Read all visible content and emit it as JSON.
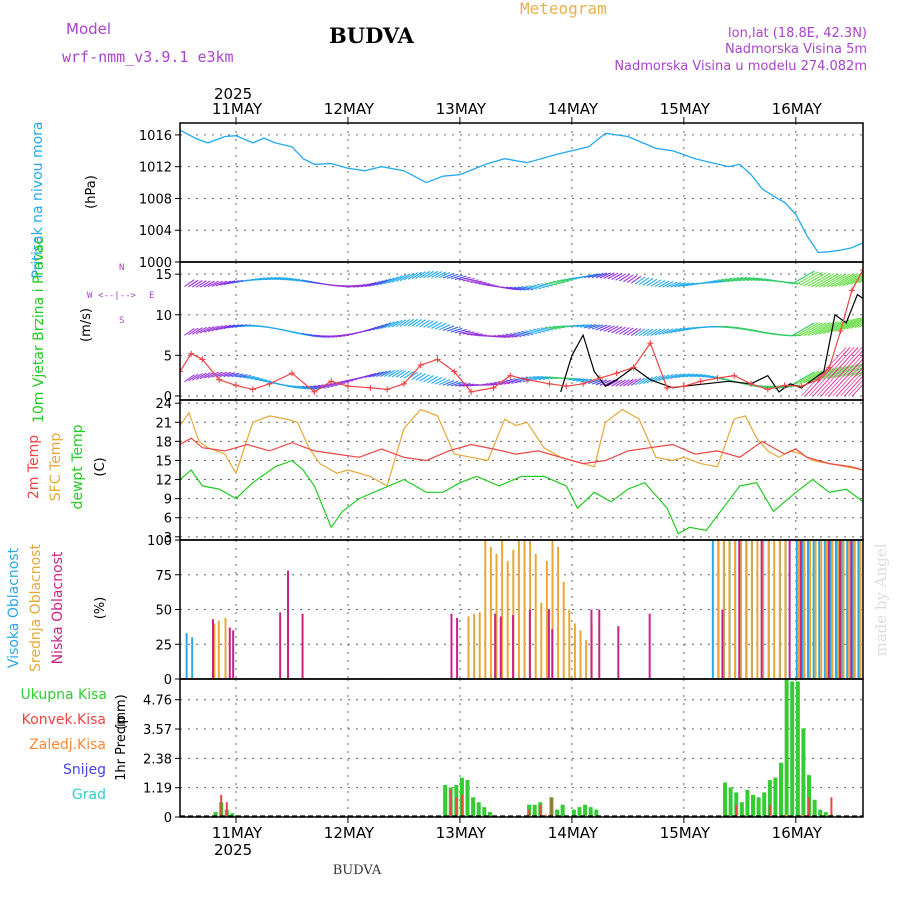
{
  "header": {
    "model_label": "Model",
    "model_name": "wrf-nmm_v3.9.1  e3km",
    "title": "Meteogram",
    "location": "BUDVA",
    "lonlat": "lon,lat (18.8E, 42.3N)",
    "elevation": "Nadmorska Visina 5m",
    "model_elevation": "Nadmorska Visina u modelu 274.082m"
  },
  "footer": {
    "location": "BUDVA",
    "credit": "made by Angel"
  },
  "time_axis": {
    "year": "2025",
    "days": [
      "11MAY",
      "12MAY",
      "13MAY",
      "14MAY",
      "15MAY",
      "16MAY"
    ],
    "start_day_offset": -0.5,
    "end_day_offset": 5.6
  },
  "colors": {
    "pressure": "#22aaee",
    "temp2m": "#ee4444",
    "sfc": "#e8a838",
    "dewpt": "#22cc22",
    "high_cloud": "#2aa8e8",
    "mid_cloud": "#e8a838",
    "low_cloud": "#cc2288",
    "total_precip": "#33cc33",
    "conv_precip": "#ee4444",
    "strat_precip": "#ff8833",
    "snow": "#4444ee",
    "graupel": "#33cccc",
    "grid": "#666666",
    "label_magenta": "#aa44cc"
  },
  "chart_data": [
    {
      "type": "line",
      "name": "pressure",
      "ylabel": "Pritisak na nivou mora",
      "unit": "(hPa)",
      "ylim": [
        1000,
        1017.5
      ],
      "yticks": [
        1000,
        1004,
        1008,
        1012,
        1016
      ],
      "x": [
        -0.5,
        -0.35,
        -0.25,
        -0.1,
        0.0,
        0.15,
        0.25,
        0.35,
        0.5,
        0.6,
        0.7,
        0.85,
        1.0,
        1.15,
        1.3,
        1.5,
        1.7,
        1.85,
        2.0,
        2.25,
        2.4,
        2.6,
        2.85,
        3.0,
        3.15,
        3.3,
        3.5,
        3.75,
        3.9,
        4.1,
        4.25,
        4.4,
        4.5,
        4.6,
        4.7,
        4.8,
        4.9,
        5.0,
        5.1,
        5.2,
        5.3,
        5.4,
        5.5,
        5.6
      ],
      "values": [
        1016.6,
        1015.5,
        1015.0,
        1015.8,
        1015.9,
        1015.0,
        1015.6,
        1015.0,
        1014.5,
        1013.0,
        1012.3,
        1012.4,
        1011.8,
        1011.5,
        1012.0,
        1011.5,
        1010.0,
        1010.8,
        1011.0,
        1012.4,
        1013.0,
        1012.5,
        1013.5,
        1014.0,
        1014.5,
        1016.2,
        1015.8,
        1014.3,
        1014.0,
        1013.0,
        1012.5,
        1012.0,
        1012.3,
        1011.0,
        1009.2,
        1008.3,
        1007.5,
        1006.0,
        1003.3,
        1001.2,
        1001.3,
        1001.5,
        1001.8,
        1002.4
      ]
    },
    {
      "type": "line",
      "name": "wind",
      "ylabel": "10m Vjetar Brzina i Pravac",
      "unit": "(m/s)",
      "ylim": [
        -0.5,
        16.5
      ],
      "yticks": [
        0,
        5,
        10,
        15
      ],
      "compass": [
        "W",
        "<--|-->",
        "E",
        "N",
        "S"
      ],
      "series": [
        {
          "name": "speed",
          "x": [
            -0.5,
            -0.4,
            -0.3,
            -0.15,
            0.0,
            0.15,
            0.3,
            0.5,
            0.7,
            0.85,
            1.0,
            1.2,
            1.35,
            1.5,
            1.65,
            1.8,
            1.95,
            2.1,
            2.3,
            2.45,
            2.6,
            2.8,
            2.95,
            3.1,
            3.25,
            3.4,
            3.55,
            3.7,
            3.85,
            4.0,
            4.15,
            4.3,
            4.45,
            4.6,
            4.75,
            4.9,
            5.05,
            5.2,
            5.3,
            5.4,
            5.5,
            5.6
          ],
          "values": [
            3.0,
            5.2,
            4.5,
            2.0,
            1.3,
            0.8,
            1.5,
            2.8,
            0.5,
            1.8,
            1.2,
            1.0,
            0.8,
            1.5,
            3.8,
            4.5,
            3.0,
            0.5,
            1.0,
            2.5,
            2.0,
            1.5,
            1.2,
            1.5,
            2.2,
            2.8,
            3.5,
            6.5,
            1.0,
            1.2,
            1.8,
            2.2,
            2.5,
            1.5,
            0.8,
            1.3,
            1.2,
            2.0,
            3.5,
            8.0,
            13.0,
            15.5
          ]
        },
        {
          "name": "gust",
          "x": [
            2.9,
            3.0,
            3.1,
            3.2,
            3.3,
            3.4,
            3.55,
            3.7,
            3.8,
            3.9,
            4.0,
            4.4,
            4.6,
            4.75,
            4.85,
            4.95,
            5.05,
            5.15,
            5.25,
            5.35,
            5.45,
            5.55,
            5.6
          ],
          "values": [
            0.5,
            5.0,
            7.5,
            3.0,
            1.2,
            2.0,
            3.5,
            2.0,
            1.5,
            1.0,
            1.2,
            1.8,
            1.5,
            2.5,
            0.5,
            1.5,
            1.0,
            2.0,
            3.0,
            10.0,
            9.0,
            12.5,
            12.0
          ]
        }
      ]
    },
    {
      "type": "line",
      "name": "temperature",
      "ylabels": [
        "2m Temp",
        "SFC Temp",
        "dewpt Temp"
      ],
      "unit": "(C)",
      "ylim": [
        2.5,
        24.5
      ],
      "yticks": [
        3,
        6,
        9,
        12,
        15,
        18,
        21,
        24
      ],
      "series": [
        {
          "name": "2m Temp",
          "x": [
            -0.5,
            -0.4,
            -0.3,
            -0.1,
            0.1,
            0.3,
            0.5,
            0.7,
            0.9,
            1.1,
            1.3,
            1.5,
            1.7,
            1.9,
            2.1,
            2.3,
            2.5,
            2.7,
            2.9,
            3.1,
            3.3,
            3.5,
            3.7,
            3.9,
            4.1,
            4.3,
            4.5,
            4.7,
            4.9,
            5.0,
            5.1,
            5.3,
            5.5,
            5.6
          ],
          "values": [
            17.5,
            18.5,
            17.0,
            16.5,
            17.5,
            16.5,
            17.8,
            16.5,
            16.0,
            15.5,
            16.8,
            15.5,
            15.0,
            16.5,
            17.5,
            16.8,
            16.0,
            16.5,
            15.5,
            14.5,
            15.0,
            16.5,
            17.0,
            17.5,
            16.0,
            16.5,
            15.5,
            18.0,
            16.0,
            16.8,
            15.5,
            14.5,
            14.0,
            13.5
          ]
        },
        {
          "name": "SFC Temp",
          "x": [
            -0.5,
            -0.42,
            -0.33,
            -0.25,
            -0.1,
            0.0,
            0.15,
            0.3,
            0.45,
            0.55,
            0.65,
            0.75,
            0.9,
            1.0,
            1.2,
            1.35,
            1.5,
            1.65,
            1.8,
            1.95,
            2.1,
            2.25,
            2.4,
            2.5,
            2.6,
            2.75,
            2.9,
            3.0,
            3.1,
            3.2,
            3.3,
            3.45,
            3.6,
            3.75,
            3.9,
            4.0,
            4.15,
            4.3,
            4.45,
            4.55,
            4.65,
            4.75,
            4.85,
            4.95,
            5.05,
            5.15,
            5.3,
            5.45,
            5.6
          ],
          "values": [
            20.5,
            22.5,
            18.0,
            17.0,
            16.0,
            13.0,
            21.0,
            22.0,
            21.5,
            21.0,
            17.0,
            14.5,
            13.0,
            13.5,
            12.5,
            11.0,
            20.0,
            23.0,
            22.0,
            16.0,
            15.5,
            15.0,
            21.5,
            20.5,
            21.0,
            17.0,
            15.5,
            15.0,
            14.5,
            14.0,
            21.0,
            23.0,
            21.5,
            15.5,
            15.0,
            15.5,
            14.5,
            14.0,
            21.5,
            22.0,
            18.5,
            16.5,
            15.5,
            16.5,
            16.0,
            15.0,
            14.5,
            14.0,
            13.5
          ]
        },
        {
          "name": "dewpt Temp",
          "x": [
            -0.5,
            -0.4,
            -0.3,
            -0.15,
            0.0,
            0.15,
            0.35,
            0.5,
            0.6,
            0.7,
            0.85,
            0.95,
            1.1,
            1.3,
            1.5,
            1.7,
            1.85,
            2.0,
            2.15,
            2.35,
            2.55,
            2.75,
            2.95,
            3.05,
            3.2,
            3.35,
            3.5,
            3.65,
            3.85,
            3.95,
            4.05,
            4.2,
            4.35,
            4.5,
            4.65,
            4.8,
            5.0,
            5.15,
            5.3,
            5.45,
            5.6
          ],
          "values": [
            12.0,
            13.5,
            11.0,
            10.5,
            9.0,
            11.5,
            14.0,
            15.0,
            13.5,
            11.0,
            4.5,
            7.0,
            9.0,
            10.5,
            12.0,
            10.0,
            10.0,
            11.5,
            12.5,
            11.0,
            12.5,
            12.5,
            11.0,
            7.5,
            10.0,
            8.5,
            10.5,
            11.5,
            7.5,
            3.5,
            4.5,
            4.0,
            7.5,
            11.0,
            11.5,
            7.0,
            10.0,
            12.0,
            10.0,
            10.5,
            8.5
          ]
        }
      ]
    },
    {
      "type": "bar",
      "name": "cloud",
      "ylabels": [
        "Visoka Oblacnost",
        "Srednja Oblacnost",
        "Niska Oblacnost"
      ],
      "unit": "(%)",
      "ylim": [
        0,
        100
      ],
      "yticks": [
        0,
        25,
        50,
        75,
        100
      ],
      "series": [
        {
          "name": "Visoka Oblacnost",
          "x": [
            -0.45,
            -0.4,
            4.25,
            4.3,
            4.35,
            4.4,
            4.45,
            4.5,
            4.55,
            4.6,
            4.7,
            4.75,
            4.85,
            4.9,
            5.0,
            5.05,
            5.1,
            5.15,
            5.2,
            5.25,
            5.3,
            5.35,
            5.4,
            5.45,
            5.5,
            5.55
          ],
          "values": [
            33,
            30,
            100,
            100,
            100,
            100,
            100,
            100,
            100,
            100,
            100,
            100,
            100,
            100,
            100,
            100,
            100,
            100,
            100,
            100,
            100,
            100,
            100,
            100,
            100,
            100
          ]
        },
        {
          "name": "Srednja Oblacnost",
          "x": [
            -0.22,
            -0.18,
            -0.12,
            2.05,
            2.1,
            2.15,
            2.2,
            2.25,
            2.3,
            2.35,
            2.4,
            2.45,
            2.5,
            2.55,
            2.6,
            2.65,
            2.7,
            2.75,
            2.8,
            2.85,
            2.9,
            2.95,
            3.0,
            3.05,
            3.1,
            3.15,
            4.28,
            4.33,
            4.38,
            4.43,
            4.48,
            4.53,
            4.58,
            4.63,
            4.68,
            4.73,
            4.78,
            4.83,
            4.88,
            5.0,
            5.05,
            5.1,
            5.15,
            5.2,
            5.25,
            5.3,
            5.35,
            5.4,
            5.45,
            5.5,
            5.55
          ],
          "values": [
            40,
            42,
            44,
            45,
            47,
            48,
            100,
            95,
            90,
            100,
            85,
            93,
            100,
            100,
            100,
            90,
            55,
            85,
            100,
            95,
            70,
            50,
            40,
            35,
            28,
            40,
            100,
            100,
            100,
            100,
            100,
            100,
            100,
            100,
            100,
            100,
            100,
            100,
            100,
            100,
            100,
            100,
            100,
            100,
            100,
            100,
            100,
            100,
            100,
            100,
            100
          ]
        },
        {
          "name": "Niska Oblacnost",
          "x": [
            -0.25,
            -0.1,
            -0.07,
            0.35,
            0.42,
            0.55,
            1.88,
            1.93,
            2.27,
            2.32,
            2.43,
            2.58,
            2.75,
            2.78,
            3.13,
            3.2,
            3.37,
            3.65,
            4.3,
            4.45,
            4.65,
            4.9,
            5.0,
            5.25,
            5.35,
            5.45
          ],
          "values": [
            43,
            37,
            35,
            48,
            78,
            47,
            47,
            44,
            47,
            45,
            46,
            50,
            50,
            36,
            50,
            50,
            38,
            47,
            50,
            100,
            100,
            100,
            100,
            100,
            100,
            100
          ]
        }
      ]
    },
    {
      "type": "bar",
      "name": "precipitation",
      "ylabels": [
        "Ukupna Kisa",
        "Konvek.Kisa",
        "Zaledj.Kisa",
        "Snijeg",
        "Grad"
      ],
      "axis_label": "1hr Precip",
      "unit": "(mm)",
      "ylim": [
        0,
        5.6
      ],
      "yticks": [
        0,
        1.19,
        2.38,
        3.57,
        4.76
      ],
      "ytick_labels": [
        "0",
        "1.19",
        "2.38",
        "3.57",
        "4.76"
      ],
      "series": [
        {
          "name": "Ukupna Kisa",
          "x": [
            -0.1,
            -0.15,
            -0.2,
            -0.05,
            1.85,
            1.9,
            1.95,
            2.0,
            2.05,
            2.1,
            2.15,
            2.2,
            2.25,
            2.6,
            2.65,
            2.7,
            2.8,
            2.85,
            2.9,
            3.0,
            3.05,
            3.1,
            3.15,
            3.2,
            4.35,
            4.4,
            4.45,
            4.5,
            4.55,
            4.6,
            4.65,
            4.7,
            4.75,
            4.8,
            4.85,
            4.9,
            4.95,
            5.0,
            5.05,
            5.1,
            5.15,
            5.2,
            5.25,
            5.3
          ],
          "values": [
            0.3,
            0.6,
            0.2,
            0.15,
            1.3,
            1.2,
            1.3,
            1.6,
            1.5,
            0.8,
            0.6,
            0.4,
            0.2,
            0.5,
            0.5,
            0.6,
            0.8,
            0.3,
            0.5,
            0.3,
            0.4,
            0.5,
            0.4,
            0.3,
            1.4,
            1.2,
            1.0,
            0.6,
            1.1,
            0.9,
            0.8,
            1.0,
            1.5,
            1.6,
            2.2,
            5.7,
            5.5,
            5.5,
            3.6,
            1.7,
            0.7,
            0.3,
            0.2,
            0.1
          ]
        },
        {
          "name": "Konvek.Kisa",
          "x": [
            -0.15,
            -0.1,
            1.9,
            1.95,
            2.0,
            2.6,
            2.7,
            2.8,
            4.45,
            4.75,
            5.1,
            5.3
          ],
          "values": [
            0.9,
            0.6,
            1.1,
            0.8,
            0.9,
            0.3,
            0.5,
            0.8,
            0.5,
            0.5,
            0.8,
            0.8
          ]
        },
        {
          "name": "Zaledj.Kisa",
          "x": [
            2.75,
            4.9,
            5.05
          ],
          "values": [
            0.1,
            0.1,
            0.1
          ]
        },
        {
          "name": "Snijeg",
          "x": [],
          "values": []
        },
        {
          "name": "Grad",
          "x": [],
          "values": []
        }
      ]
    }
  ]
}
